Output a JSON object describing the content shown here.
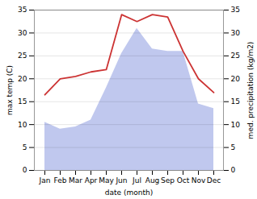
{
  "chart_data": {
    "type": "line",
    "xlabel": "date (month)",
    "ylabel": "max temp (C)",
    "y2label": "med. precipitation (kg/m2)",
    "categories": [
      "Jan",
      "Feb",
      "Mar",
      "Apr",
      "May",
      "Jun",
      "Jul",
      "Aug",
      "Sep",
      "Oct",
      "Nov",
      "Dec"
    ],
    "series": [
      {
        "type": "area",
        "axis": "y2",
        "color": "#c0c8ee",
        "values": [
          10.5,
          9.0,
          9.5,
          11.0,
          18.0,
          25.5,
          31.0,
          26.5,
          26.0,
          26.0,
          14.5,
          13.5
        ]
      },
      {
        "type": "line",
        "color": "#cc3333",
        "values": [
          16.5,
          20.0,
          20.5,
          21.5,
          22.0,
          34.0,
          32.5,
          34.0,
          33.5,
          26.0,
          20.0,
          17.0
        ]
      }
    ],
    "ylim": [
      0,
      35
    ],
    "yticks": [
      0,
      5,
      10,
      15,
      20,
      25,
      30,
      35
    ],
    "y2lim": [
      0,
      35
    ],
    "y2ticks": [
      0,
      5,
      10,
      15,
      20,
      25,
      30,
      35
    ],
    "grid": true
  }
}
